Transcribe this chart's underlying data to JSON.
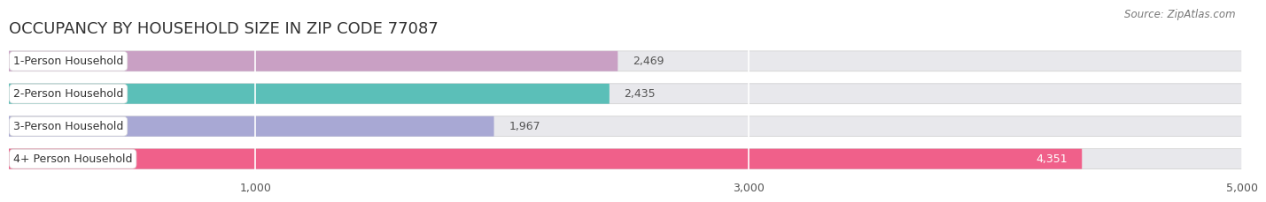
{
  "title": "OCCUPANCY BY HOUSEHOLD SIZE IN ZIP CODE 77087",
  "source": "Source: ZipAtlas.com",
  "categories": [
    "1-Person Household",
    "2-Person Household",
    "3-Person Household",
    "4+ Person Household"
  ],
  "values": [
    2469,
    2435,
    1967,
    4351
  ],
  "bar_colors": [
    "#c9a0c4",
    "#5bbfb8",
    "#a8a8d4",
    "#f0608a"
  ],
  "bar_bg_color": "#e8e8ec",
  "xlim": [
    0,
    5000
  ],
  "xticks": [
    1000,
    3000,
    5000
  ],
  "value_labels": [
    "2,469",
    "2,435",
    "1,967",
    "4,351"
  ],
  "background_color": "#ffffff",
  "title_fontsize": 13,
  "label_fontsize": 9,
  "value_fontsize": 9,
  "source_fontsize": 8.5,
  "tick_fontsize": 9
}
